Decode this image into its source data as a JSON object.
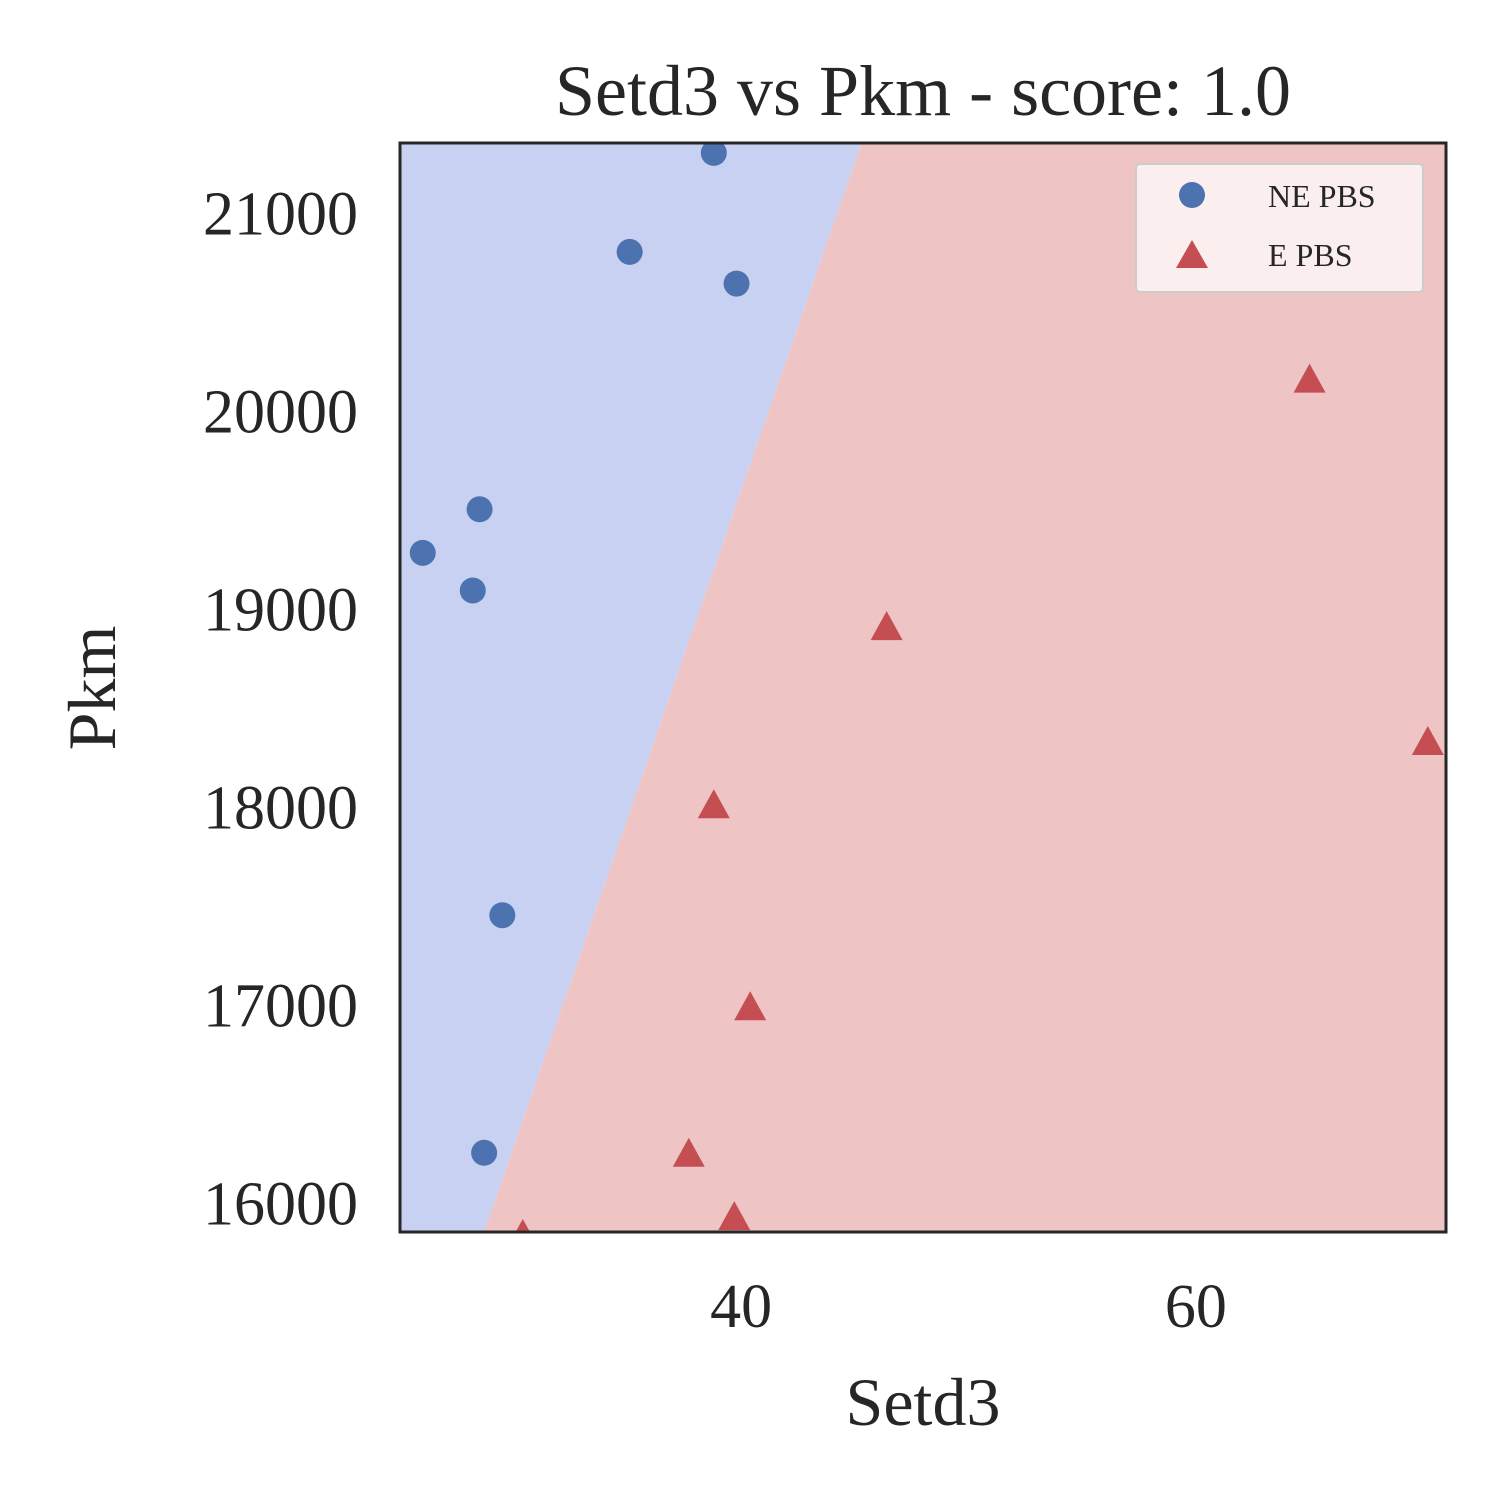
{
  "chart_data": {
    "type": "scatter",
    "title": "Setd3 vs Pkm - score: 1.0",
    "xlabel": "Setd3",
    "ylabel": "Pkm",
    "xlim": [
      25.0,
      71.0
    ],
    "ylim": [
      15850,
      21350
    ],
    "xticks": [
      40,
      60
    ],
    "yticks": [
      16000,
      17000,
      18000,
      19000,
      20000,
      21000
    ],
    "grid": false,
    "legend_position": "top-right",
    "decision_boundary": {
      "points": [
        [
          28.7,
          15850
        ],
        [
          45.3,
          21350
        ]
      ],
      "left_class_color": "#c8d1f2",
      "right_class_color": "#efc4c4"
    },
    "series": [
      {
        "name": "NE PBS",
        "marker": "circle",
        "color": "#4c72b0",
        "points": [
          [
            38.8,
            21300
          ],
          [
            35.1,
            20800
          ],
          [
            39.8,
            20640
          ],
          [
            28.5,
            19500
          ],
          [
            26.0,
            19280
          ],
          [
            28.2,
            19090
          ],
          [
            29.5,
            17450
          ],
          [
            28.7,
            16250
          ]
        ]
      },
      {
        "name": "E PBS",
        "marker": "triangle",
        "color": "#c44e52",
        "points": [
          [
            65.0,
            20150
          ],
          [
            46.4,
            18900
          ],
          [
            70.2,
            18320
          ],
          [
            38.8,
            18000
          ],
          [
            40.4,
            16980
          ],
          [
            37.7,
            16240
          ],
          [
            39.7,
            15920
          ],
          [
            30.4,
            15830
          ]
        ]
      }
    ]
  }
}
